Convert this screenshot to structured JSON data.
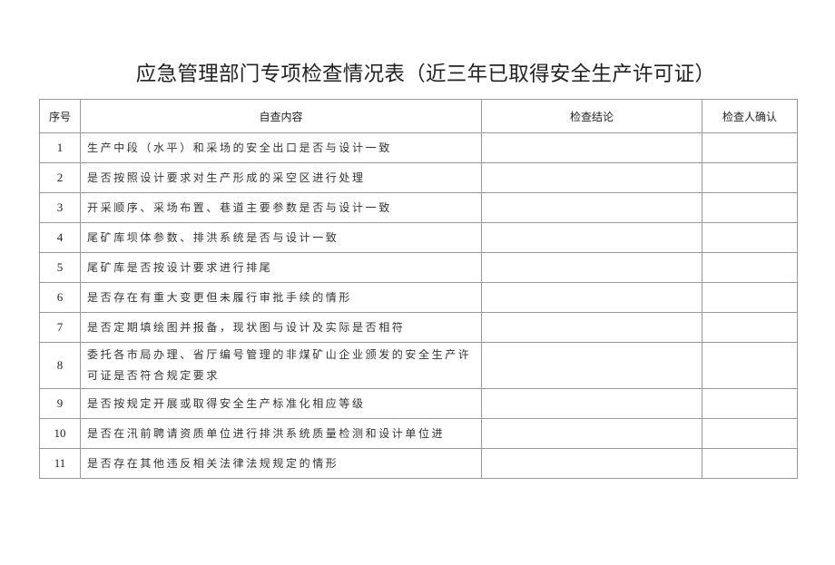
{
  "title": "应急管理部门专项检查情况表（近三年已取得安全生产许可证）",
  "table": {
    "headers": [
      "序号",
      "自查内容",
      "检查结论",
      "检查人确认"
    ],
    "rows": [
      {
        "num": "1",
        "content": "生产中段（水平）和采场的安全出口是否与设计一致",
        "result": "",
        "confirm": ""
      },
      {
        "num": "2",
        "content": "是否按照设计要求对生产形成的采空区进行处理",
        "result": "",
        "confirm": ""
      },
      {
        "num": "3",
        "content": "开采顺序、采场布置、巷道主要参数是否与设计一致",
        "result": "",
        "confirm": ""
      },
      {
        "num": "4",
        "content": "尾矿库坝体参数、排洪系统是否与设计一致",
        "result": "",
        "confirm": ""
      },
      {
        "num": "5",
        "content": "尾矿库是否按设计要求进行排尾",
        "result": "",
        "confirm": ""
      },
      {
        "num": "6",
        "content": "是否存在有重大变更但未履行审批手续的情形",
        "result": "",
        "confirm": ""
      },
      {
        "num": "7",
        "content": "是否定期填绘图并报备，现状图与设计及实际是否相符",
        "result": "",
        "confirm": ""
      },
      {
        "num": "8",
        "content": "委托各市局办理、省厅编号管理的非煤矿山企业颁发的安全生产许可证是否符合规定要求",
        "result": "",
        "confirm": ""
      },
      {
        "num": "9",
        "content": "是否按规定开展或取得安全生产标准化相应等级",
        "result": "",
        "confirm": ""
      },
      {
        "num": "10",
        "content": "是否在汛前聘请资质单位进行排洪系统质量检测和设计单位进",
        "result": "",
        "confirm": ""
      },
      {
        "num": "11",
        "content": "是否存在其他违反相关法律法规规定的情形",
        "result": "",
        "confirm": ""
      }
    ]
  }
}
